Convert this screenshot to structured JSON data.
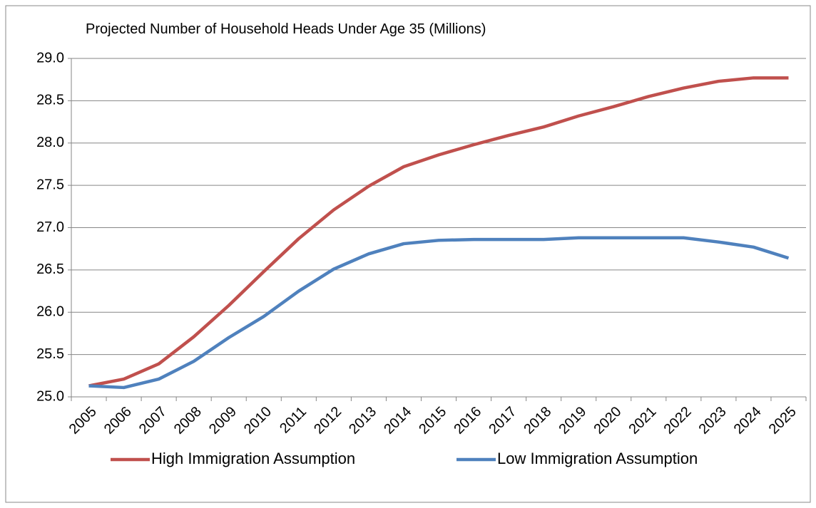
{
  "chart_data": {
    "type": "line",
    "title": "Projected Number of Household Heads Under Age 35 (Millions)",
    "categories": [
      "2005",
      "2006",
      "2007",
      "2008",
      "2009",
      "2010",
      "2011",
      "2012",
      "2013",
      "2014",
      "2015",
      "2016",
      "2017",
      "2018",
      "2019",
      "2020",
      "2021",
      "2022",
      "2023",
      "2024",
      "2025"
    ],
    "series": [
      {
        "name": "High Immigration Assumption",
        "color": "#c0504d",
        "values": [
          25.13,
          25.21,
          25.39,
          25.71,
          26.08,
          26.48,
          26.87,
          27.21,
          27.49,
          27.72,
          27.86,
          27.98,
          28.09,
          28.19,
          28.32,
          28.43,
          28.55,
          28.65,
          28.73,
          28.77,
          28.77
        ]
      },
      {
        "name": "Low Immigration Assumption",
        "color": "#4f81bd",
        "values": [
          25.13,
          25.11,
          25.21,
          25.42,
          25.7,
          25.95,
          26.25,
          26.51,
          26.69,
          26.81,
          26.85,
          26.86,
          26.86,
          26.86,
          26.88,
          26.88,
          26.88,
          26.88,
          26.83,
          26.77,
          26.64
        ]
      }
    ],
    "ylim": [
      25,
      29
    ],
    "yticks": [
      {
        "value": 25,
        "label": "25.0"
      },
      {
        "value": 25.5,
        "label": "25.5"
      },
      {
        "value": 26,
        "label": "26.0"
      },
      {
        "value": 26.5,
        "label": "26.5"
      },
      {
        "value": 27,
        "label": "27.0"
      },
      {
        "value": 27.5,
        "label": "27.5"
      },
      {
        "value": 28,
        "label": "28.0"
      },
      {
        "value": 28.5,
        "label": "28.5"
      },
      {
        "value": 29,
        "label": "29.0"
      }
    ],
    "grid": true,
    "legend": "bottom"
  }
}
